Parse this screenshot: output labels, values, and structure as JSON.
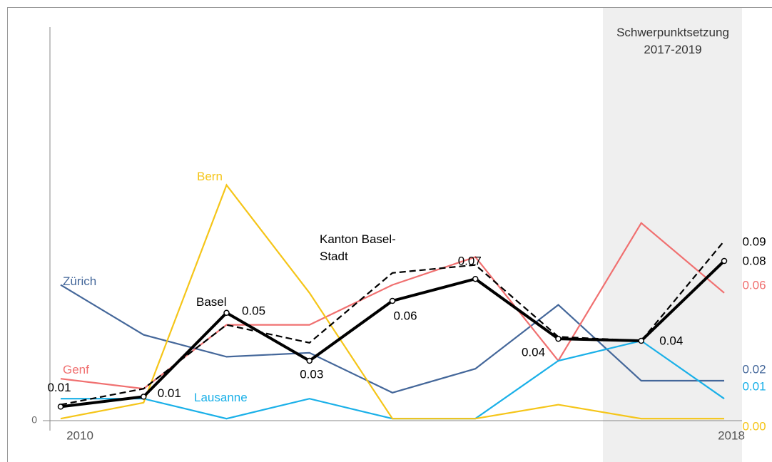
{
  "chart_data": {
    "type": "line",
    "annotation": "Schwerpunktsetzung 2017-2019",
    "categories": [
      "2010",
      null,
      null,
      null,
      null,
      null,
      null,
      null,
      "2018"
    ],
    "ylim": [
      0,
      0.2
    ],
    "yticks": [
      0
    ],
    "series": [
      {
        "name": "Zürich",
        "color": "#44679a",
        "style": "solid",
        "values": [
          0.068,
          0.043,
          0.032,
          0.034,
          0.014,
          0.026,
          0.058,
          0.02,
          0.02
        ],
        "value_labels": [
          null,
          null,
          null,
          null,
          null,
          null,
          null,
          null,
          "0.02"
        ]
      },
      {
        "name": "Genf",
        "color": "#f07070",
        "style": "solid",
        "values": [
          0.021,
          0.016,
          0.048,
          0.048,
          0.068,
          0.082,
          0.03,
          0.099,
          0.064
        ],
        "value_labels": [
          null,
          null,
          null,
          null,
          null,
          null,
          null,
          null,
          "0.06"
        ]
      },
      {
        "name": "Lausanne",
        "color": "#1ab0e8",
        "style": "solid",
        "values": [
          0.011,
          0.011,
          0.001,
          0.011,
          0.001,
          0.001,
          0.03,
          0.04,
          0.011
        ],
        "value_labels": [
          null,
          null,
          null,
          null,
          null,
          null,
          null,
          null,
          "0.01"
        ]
      },
      {
        "name": "Bern",
        "color": "#f5c518",
        "style": "solid",
        "values": [
          0.001,
          0.009,
          0.118,
          0.064,
          0.001,
          0.001,
          0.008,
          0.001,
          0.001
        ],
        "value_labels": [
          null,
          null,
          null,
          null,
          null,
          null,
          null,
          null,
          "0.00"
        ]
      },
      {
        "name": "Kanton Basel-Stadt",
        "color": "#000000",
        "style": "dashed",
        "values": [
          0.008,
          0.016,
          0.048,
          0.039,
          0.074,
          0.078,
          0.042,
          0.04,
          0.09
        ],
        "value_labels": [
          null,
          null,
          null,
          null,
          null,
          null,
          null,
          null,
          "0.09"
        ]
      },
      {
        "name": "Basel",
        "color": "#000000",
        "style": "bold",
        "values": [
          0.007,
          0.012,
          0.054,
          0.03,
          0.06,
          0.071,
          0.041,
          0.04,
          0.08
        ],
        "value_labels": [
          "0.01",
          "0.01",
          "0.05",
          "0.03",
          "0.06",
          "0.07",
          "0.04",
          "0.04",
          "0.08"
        ]
      }
    ]
  }
}
